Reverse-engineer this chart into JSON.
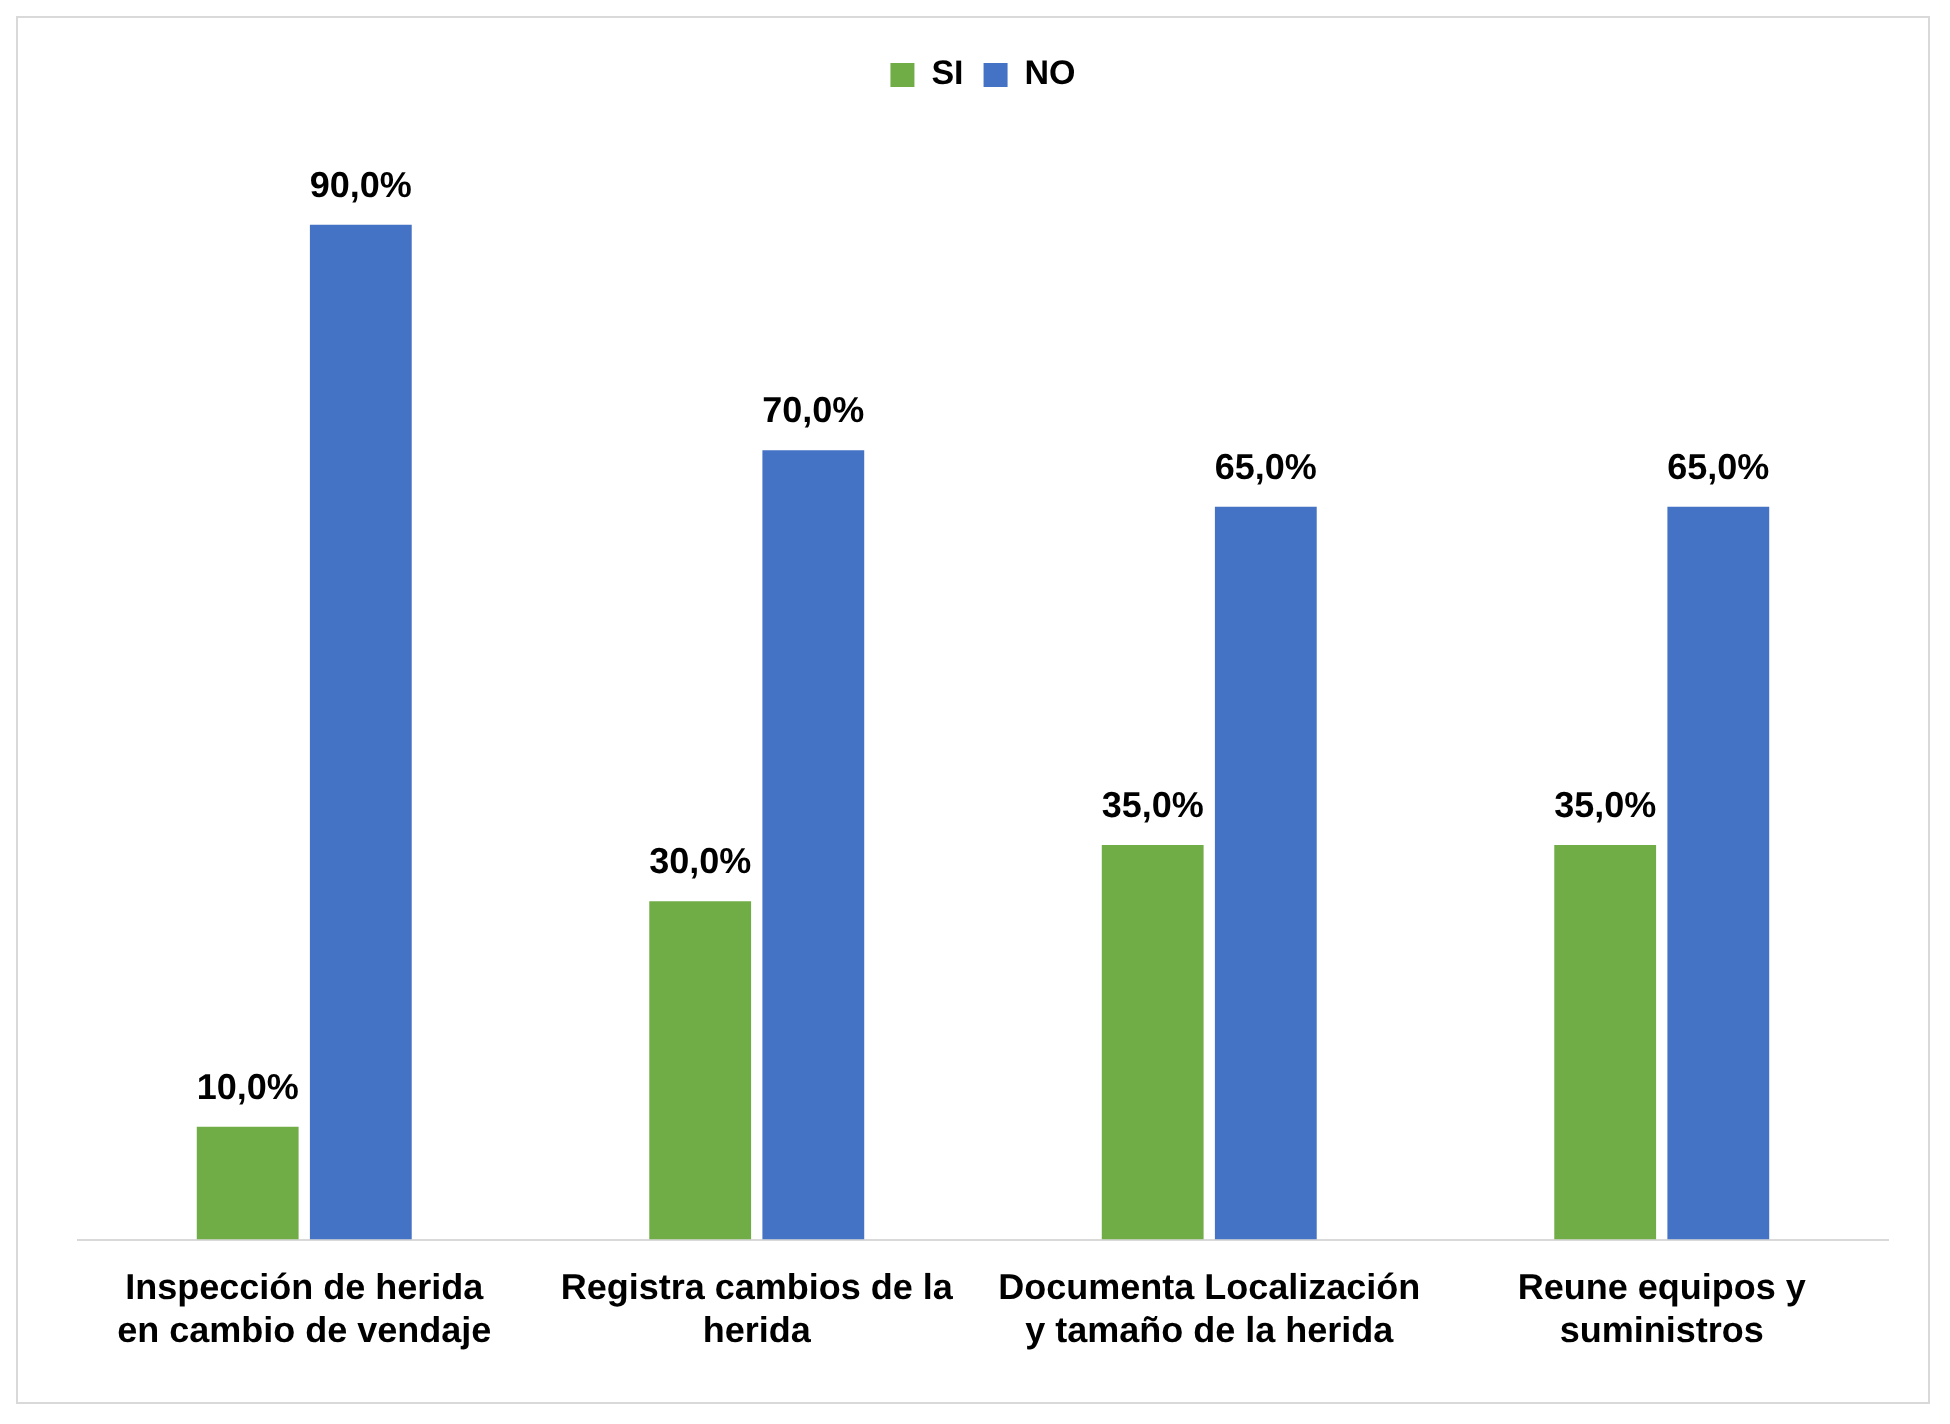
{
  "chart_data": {
    "type": "bar",
    "categories": [
      "Inspección de herida en cambio de vendaje",
      "Registra cambios de la herida",
      "Documenta Localización y tamaño de la herida",
      "Reune equipos y suministros"
    ],
    "series": [
      {
        "name": "SI",
        "color": "#70ad47",
        "values": [
          10,
          30,
          35,
          35
        ],
        "value_labels": [
          "10,0%",
          "30,0%",
          "35,0%",
          "35,0%"
        ]
      },
      {
        "name": "NO",
        "color": "#4472c4",
        "values": [
          90,
          70,
          65,
          65
        ],
        "value_labels": [
          "90,0%",
          "70,0%",
          "65,0%",
          "65,0%"
        ]
      }
    ],
    "legend": "top",
    "grid": false
  }
}
